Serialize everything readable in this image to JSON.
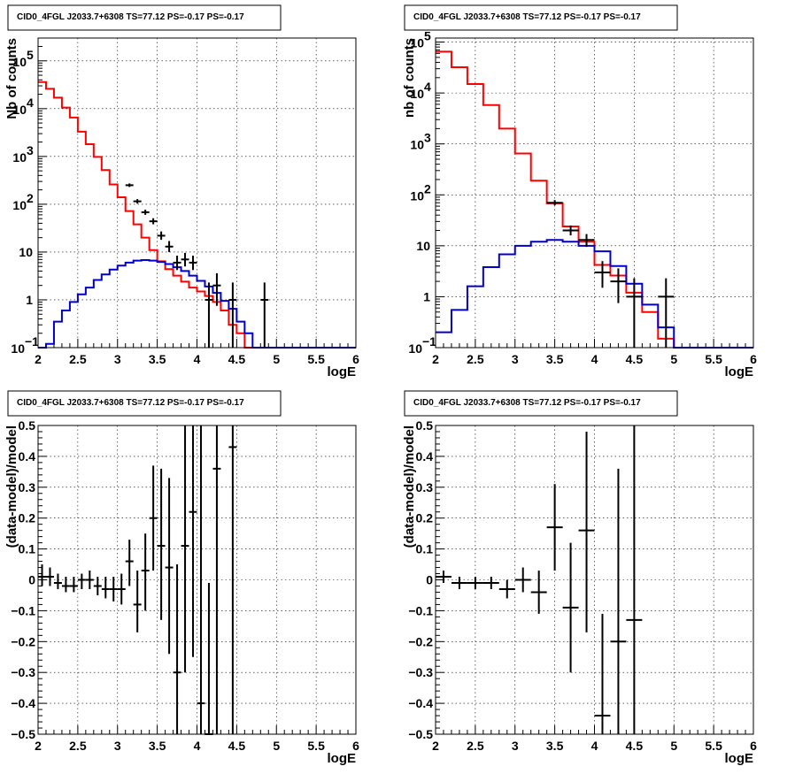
{
  "colors": {
    "data": "#000000",
    "total_model": "#ff0000",
    "source_model": "#0000cc"
  },
  "chart_data": [
    {
      "type": "line",
      "panel": "top-left",
      "title": "CID0_4FGL J2033.7+6308 TS=77.12 PS=-0.17 PS=-0.17",
      "xlabel": "logE",
      "ylabel": "Nb of counts",
      "xlim": [
        2,
        6
      ],
      "ylim": [
        0.1,
        300000
      ],
      "ylog": true,
      "grid": true,
      "x_ticks": [
        "2",
        "2.5",
        "3",
        "3.5",
        "4",
        "4.5",
        "5",
        "5.5",
        "6"
      ],
      "y_ticks": [
        {
          "value": 0.1,
          "label": "10",
          "sup": "−1"
        },
        {
          "value": 1,
          "label": "1",
          "sup": ""
        },
        {
          "value": 10,
          "label": "10",
          "sup": ""
        },
        {
          "value": 100,
          "label": "10",
          "sup": "2"
        },
        {
          "value": 1000,
          "label": "10",
          "sup": "3"
        },
        {
          "value": 10000,
          "label": "10",
          "sup": "4"
        },
        {
          "value": 100000,
          "label": "10",
          "sup": "5"
        }
      ],
      "bin_edges": [
        2.0,
        2.1,
        2.2,
        2.3,
        2.4,
        2.5,
        2.6,
        2.7,
        2.8,
        2.9,
        3.0,
        3.1,
        3.2,
        3.3,
        3.4,
        3.5,
        3.6,
        3.7,
        3.8,
        3.9,
        4.0,
        4.1,
        4.2,
        4.3,
        4.4,
        4.5,
        4.6,
        4.7,
        4.8,
        4.9,
        5.0,
        5.1,
        5.2,
        5.3,
        5.4,
        5.5,
        5.6,
        5.7,
        5.8,
        5.9,
        6.0
      ],
      "series": [
        {
          "name": "total model",
          "role": "total_model",
          "values": [
            36000,
            26000,
            17000,
            10500,
            6500,
            3300,
            1800,
            980,
            520,
            260,
            140,
            72,
            38,
            20,
            11,
            6.4,
            4.4,
            3.2,
            2.4,
            1.8,
            1.5,
            1.2,
            0.9,
            0.6,
            0.3,
            0.2,
            0.1,
            0.1,
            0.1,
            0.1,
            0.1,
            0.1,
            0.1,
            0.1,
            0.1,
            0.1,
            0.1,
            0.1,
            0.1,
            0.1
          ]
        },
        {
          "name": "source model",
          "role": "source_model",
          "values": [
            0.1,
            0.12,
            0.35,
            0.6,
            0.9,
            1.3,
            1.8,
            2.6,
            3.4,
            4.3,
            5.2,
            6.0,
            6.6,
            6.8,
            6.6,
            6.2,
            5.6,
            4.8,
            4.0,
            3.2,
            2.5,
            1.9,
            1.4,
            0.95,
            0.65,
            0.35,
            0.2,
            0.1,
            0.1,
            0.1,
            0.1,
            0.1,
            0.1,
            0.1,
            0.1,
            0.1,
            0.1,
            0.1,
            0.1,
            0.1
          ]
        }
      ],
      "data_points": [
        {
          "x": 3.15,
          "y": 250,
          "ylo": 230,
          "yhi": 272
        },
        {
          "x": 3.25,
          "y": 115,
          "ylo": 103,
          "yhi": 128
        },
        {
          "x": 3.35,
          "y": 68,
          "ylo": 60,
          "yhi": 77
        },
        {
          "x": 3.45,
          "y": 44,
          "ylo": 38,
          "yhi": 51
        },
        {
          "x": 3.55,
          "y": 22,
          "ylo": 18,
          "yhi": 27
        },
        {
          "x": 3.65,
          "y": 13,
          "ylo": 10,
          "yhi": 17
        },
        {
          "x": 3.75,
          "y": 6,
          "ylo": 4.2,
          "yhi": 8.4
        },
        {
          "x": 3.85,
          "y": 7,
          "ylo": 5,
          "yhi": 9.6
        },
        {
          "x": 3.95,
          "y": 6,
          "ylo": 4.2,
          "yhi": 8.4
        },
        {
          "x": 4.15,
          "y": 1,
          "ylo": 0.1,
          "yhi": 2.3
        },
        {
          "x": 4.25,
          "y": 2,
          "ylo": 0.75,
          "yhi": 3.6
        },
        {
          "x": 4.45,
          "y": 1,
          "ylo": 0.1,
          "yhi": 2.3
        },
        {
          "x": 4.85,
          "y": 1,
          "ylo": 0.1,
          "yhi": 2.3
        }
      ]
    },
    {
      "type": "line",
      "panel": "top-right",
      "title": "CID0_4FGL J2033.7+6308 TS=77.12 PS=-0.17 PS=-0.17",
      "xlabel": "logE",
      "ylabel": "nb of counts",
      "xlim": [
        2,
        6
      ],
      "ylim": [
        0.1,
        120000
      ],
      "ylog": true,
      "grid": true,
      "x_ticks": [
        "2",
        "2.5",
        "3",
        "3.5",
        "4",
        "4.5",
        "5",
        "5.5",
        "6"
      ],
      "y_ticks": [
        {
          "value": 0.1,
          "label": "10",
          "sup": "−1"
        },
        {
          "value": 1,
          "label": "1",
          "sup": ""
        },
        {
          "value": 10,
          "label": "10",
          "sup": ""
        },
        {
          "value": 100,
          "label": "10",
          "sup": "2"
        },
        {
          "value": 1000,
          "label": "10",
          "sup": "3"
        },
        {
          "value": 10000,
          "label": "10",
          "sup": "4"
        },
        {
          "value": 100000,
          "label": "10",
          "sup": "5"
        }
      ],
      "bin_edges": [
        2.0,
        2.2,
        2.4,
        2.6,
        2.8,
        3.0,
        3.2,
        3.4,
        3.6,
        3.8,
        4.0,
        4.2,
        4.4,
        4.6,
        4.8,
        5.0,
        5.2,
        5.4,
        5.6,
        5.8,
        6.0
      ],
      "series": [
        {
          "name": "total model",
          "role": "total_model",
          "values": [
            65000,
            32000,
            15000,
            5800,
            2000,
            650,
            190,
            68,
            24,
            12,
            4.2,
            2.6,
            1.2,
            0.5,
            0.15,
            0.1,
            0.1,
            0.1,
            0.1,
            0.1
          ]
        },
        {
          "name": "source model",
          "role": "source_model",
          "values": [
            0.2,
            0.55,
            1.6,
            3.8,
            6.8,
            10,
            12,
            13,
            12,
            10,
            7.8,
            4,
            1.8,
            0.7,
            0.25,
            0.1,
            0.1,
            0.1,
            0.1,
            0.1
          ]
        }
      ],
      "data_points": [
        {
          "x": 3.5,
          "y": 70,
          "ylo": 62,
          "yhi": 79
        },
        {
          "x": 3.7,
          "y": 20,
          "ylo": 16,
          "yhi": 25
        },
        {
          "x": 3.9,
          "y": 13,
          "ylo": 9.5,
          "yhi": 17
        },
        {
          "x": 4.1,
          "y": 3,
          "ylo": 1.5,
          "yhi": 5
        },
        {
          "x": 4.3,
          "y": 2,
          "ylo": 0.75,
          "yhi": 3.6
        },
        {
          "x": 4.5,
          "y": 1,
          "ylo": 0.1,
          "yhi": 2.3
        },
        {
          "x": 4.9,
          "y": 1,
          "ylo": 0.1,
          "yhi": 2.3
        }
      ]
    },
    {
      "type": "scatter",
      "panel": "bottom-left",
      "title": "CID0_4FGL J2033.7+6308 TS=77.12 PS=-0.17 PS=-0.17",
      "xlabel": "logE",
      "ylabel": "(data-model)/model",
      "xlim": [
        2,
        6
      ],
      "ylim": [
        -0.5,
        0.5
      ],
      "grid": true,
      "x_ticks": [
        "2",
        "2.5",
        "3",
        "3.5",
        "4",
        "4.5",
        "5",
        "5.5",
        "6"
      ],
      "y_ticks": [
        "−0.5",
        "−0.4",
        "−0.3",
        "−0.2",
        "−0.1",
        "0",
        "0.1",
        "0.2",
        "0.3",
        "0.4",
        "0.5"
      ],
      "bin_halfwidth": 0.05,
      "data_points": [
        {
          "x": 2.05,
          "y": 0.01,
          "ylo": -0.02,
          "yhi": 0.05
        },
        {
          "x": 2.15,
          "y": 0.01,
          "ylo": -0.02,
          "yhi": 0.04
        },
        {
          "x": 2.25,
          "y": -0.01,
          "ylo": -0.03,
          "yhi": 0.02
        },
        {
          "x": 2.35,
          "y": -0.02,
          "ylo": -0.04,
          "yhi": 0.01
        },
        {
          "x": 2.45,
          "y": -0.02,
          "ylo": -0.04,
          "yhi": 0.01
        },
        {
          "x": 2.55,
          "y": 0.0,
          "ylo": -0.03,
          "yhi": 0.02
        },
        {
          "x": 2.65,
          "y": 0.0,
          "ylo": -0.03,
          "yhi": 0.03
        },
        {
          "x": 2.75,
          "y": -0.02,
          "ylo": -0.05,
          "yhi": 0.01
        },
        {
          "x": 2.85,
          "y": -0.03,
          "ylo": -0.06,
          "yhi": 0.01
        },
        {
          "x": 2.95,
          "y": -0.03,
          "ylo": -0.07,
          "yhi": 0.01
        },
        {
          "x": 3.05,
          "y": -0.03,
          "ylo": -0.08,
          "yhi": 0.02
        },
        {
          "x": 3.15,
          "y": 0.06,
          "ylo": -0.02,
          "yhi": 0.13
        },
        {
          "x": 3.25,
          "y": -0.08,
          "ylo": -0.17,
          "yhi": 0.03
        },
        {
          "x": 3.35,
          "y": 0.03,
          "ylo": -0.1,
          "yhi": 0.15
        },
        {
          "x": 3.45,
          "y": 0.2,
          "ylo": 0.03,
          "yhi": 0.37
        },
        {
          "x": 3.55,
          "y": 0.11,
          "ylo": -0.13,
          "yhi": 0.36
        },
        {
          "x": 3.65,
          "y": 0.04,
          "ylo": -0.24,
          "yhi": 0.33
        },
        {
          "x": 3.75,
          "y": -0.3,
          "ylo": -0.5,
          "yhi": 0.05
        },
        {
          "x": 3.85,
          "y": 0.11,
          "ylo": -0.3,
          "yhi": 0.5
        },
        {
          "x": 3.95,
          "y": 0.22,
          "ylo": -0.25,
          "yhi": 0.5
        },
        {
          "x": 4.05,
          "y": -0.4,
          "ylo": -0.5,
          "yhi": 0.5
        },
        {
          "x": 4.15,
          "y": -0.5,
          "ylo": -0.5,
          "yhi": -0.01
        },
        {
          "x": 4.25,
          "y": 0.36,
          "ylo": -0.5,
          "yhi": 0.5
        },
        {
          "x": 4.45,
          "y": 0.43,
          "ylo": -0.5,
          "yhi": 0.5
        }
      ]
    },
    {
      "type": "scatter",
      "panel": "bottom-right",
      "title": "CID0_4FGL J2033.7+6308 TS=77.12 PS=-0.17 PS=-0.17",
      "xlabel": "logE",
      "ylabel": "(data-model)/model",
      "xlim": [
        2,
        6
      ],
      "ylim": [
        -0.5,
        0.5
      ],
      "grid": true,
      "x_ticks": [
        "2",
        "2.5",
        "3",
        "3.5",
        "4",
        "4.5",
        "5",
        "5.5",
        "6"
      ],
      "y_ticks": [
        "−0.5",
        "−0.4",
        "−0.3",
        "−0.2",
        "−0.1",
        "0",
        "0.1",
        "0.2",
        "0.3",
        "0.4",
        "0.5"
      ],
      "bin_halfwidth": 0.1,
      "data_points": [
        {
          "x": 2.1,
          "y": 0.01,
          "ylo": -0.01,
          "yhi": 0.03
        },
        {
          "x": 2.3,
          "y": -0.01,
          "ylo": -0.03,
          "yhi": 0.01
        },
        {
          "x": 2.5,
          "y": -0.01,
          "ylo": -0.03,
          "yhi": 0.01
        },
        {
          "x": 2.7,
          "y": -0.01,
          "ylo": -0.03,
          "yhi": 0.01
        },
        {
          "x": 2.9,
          "y": -0.03,
          "ylo": -0.06,
          "yhi": 0.0
        },
        {
          "x": 3.1,
          "y": 0.0,
          "ylo": -0.04,
          "yhi": 0.04
        },
        {
          "x": 3.3,
          "y": -0.04,
          "ylo": -0.11,
          "yhi": 0.03
        },
        {
          "x": 3.5,
          "y": 0.17,
          "ylo": 0.03,
          "yhi": 0.31
        },
        {
          "x": 3.7,
          "y": -0.09,
          "ylo": -0.3,
          "yhi": 0.12
        },
        {
          "x": 3.9,
          "y": 0.16,
          "ylo": -0.17,
          "yhi": 0.48
        },
        {
          "x": 4.1,
          "y": -0.44,
          "ylo": -0.5,
          "yhi": -0.11
        },
        {
          "x": 4.3,
          "y": -0.2,
          "ylo": -0.5,
          "yhi": 0.36
        },
        {
          "x": 4.5,
          "y": -0.13,
          "ylo": -0.5,
          "yhi": 0.5
        }
      ]
    }
  ]
}
